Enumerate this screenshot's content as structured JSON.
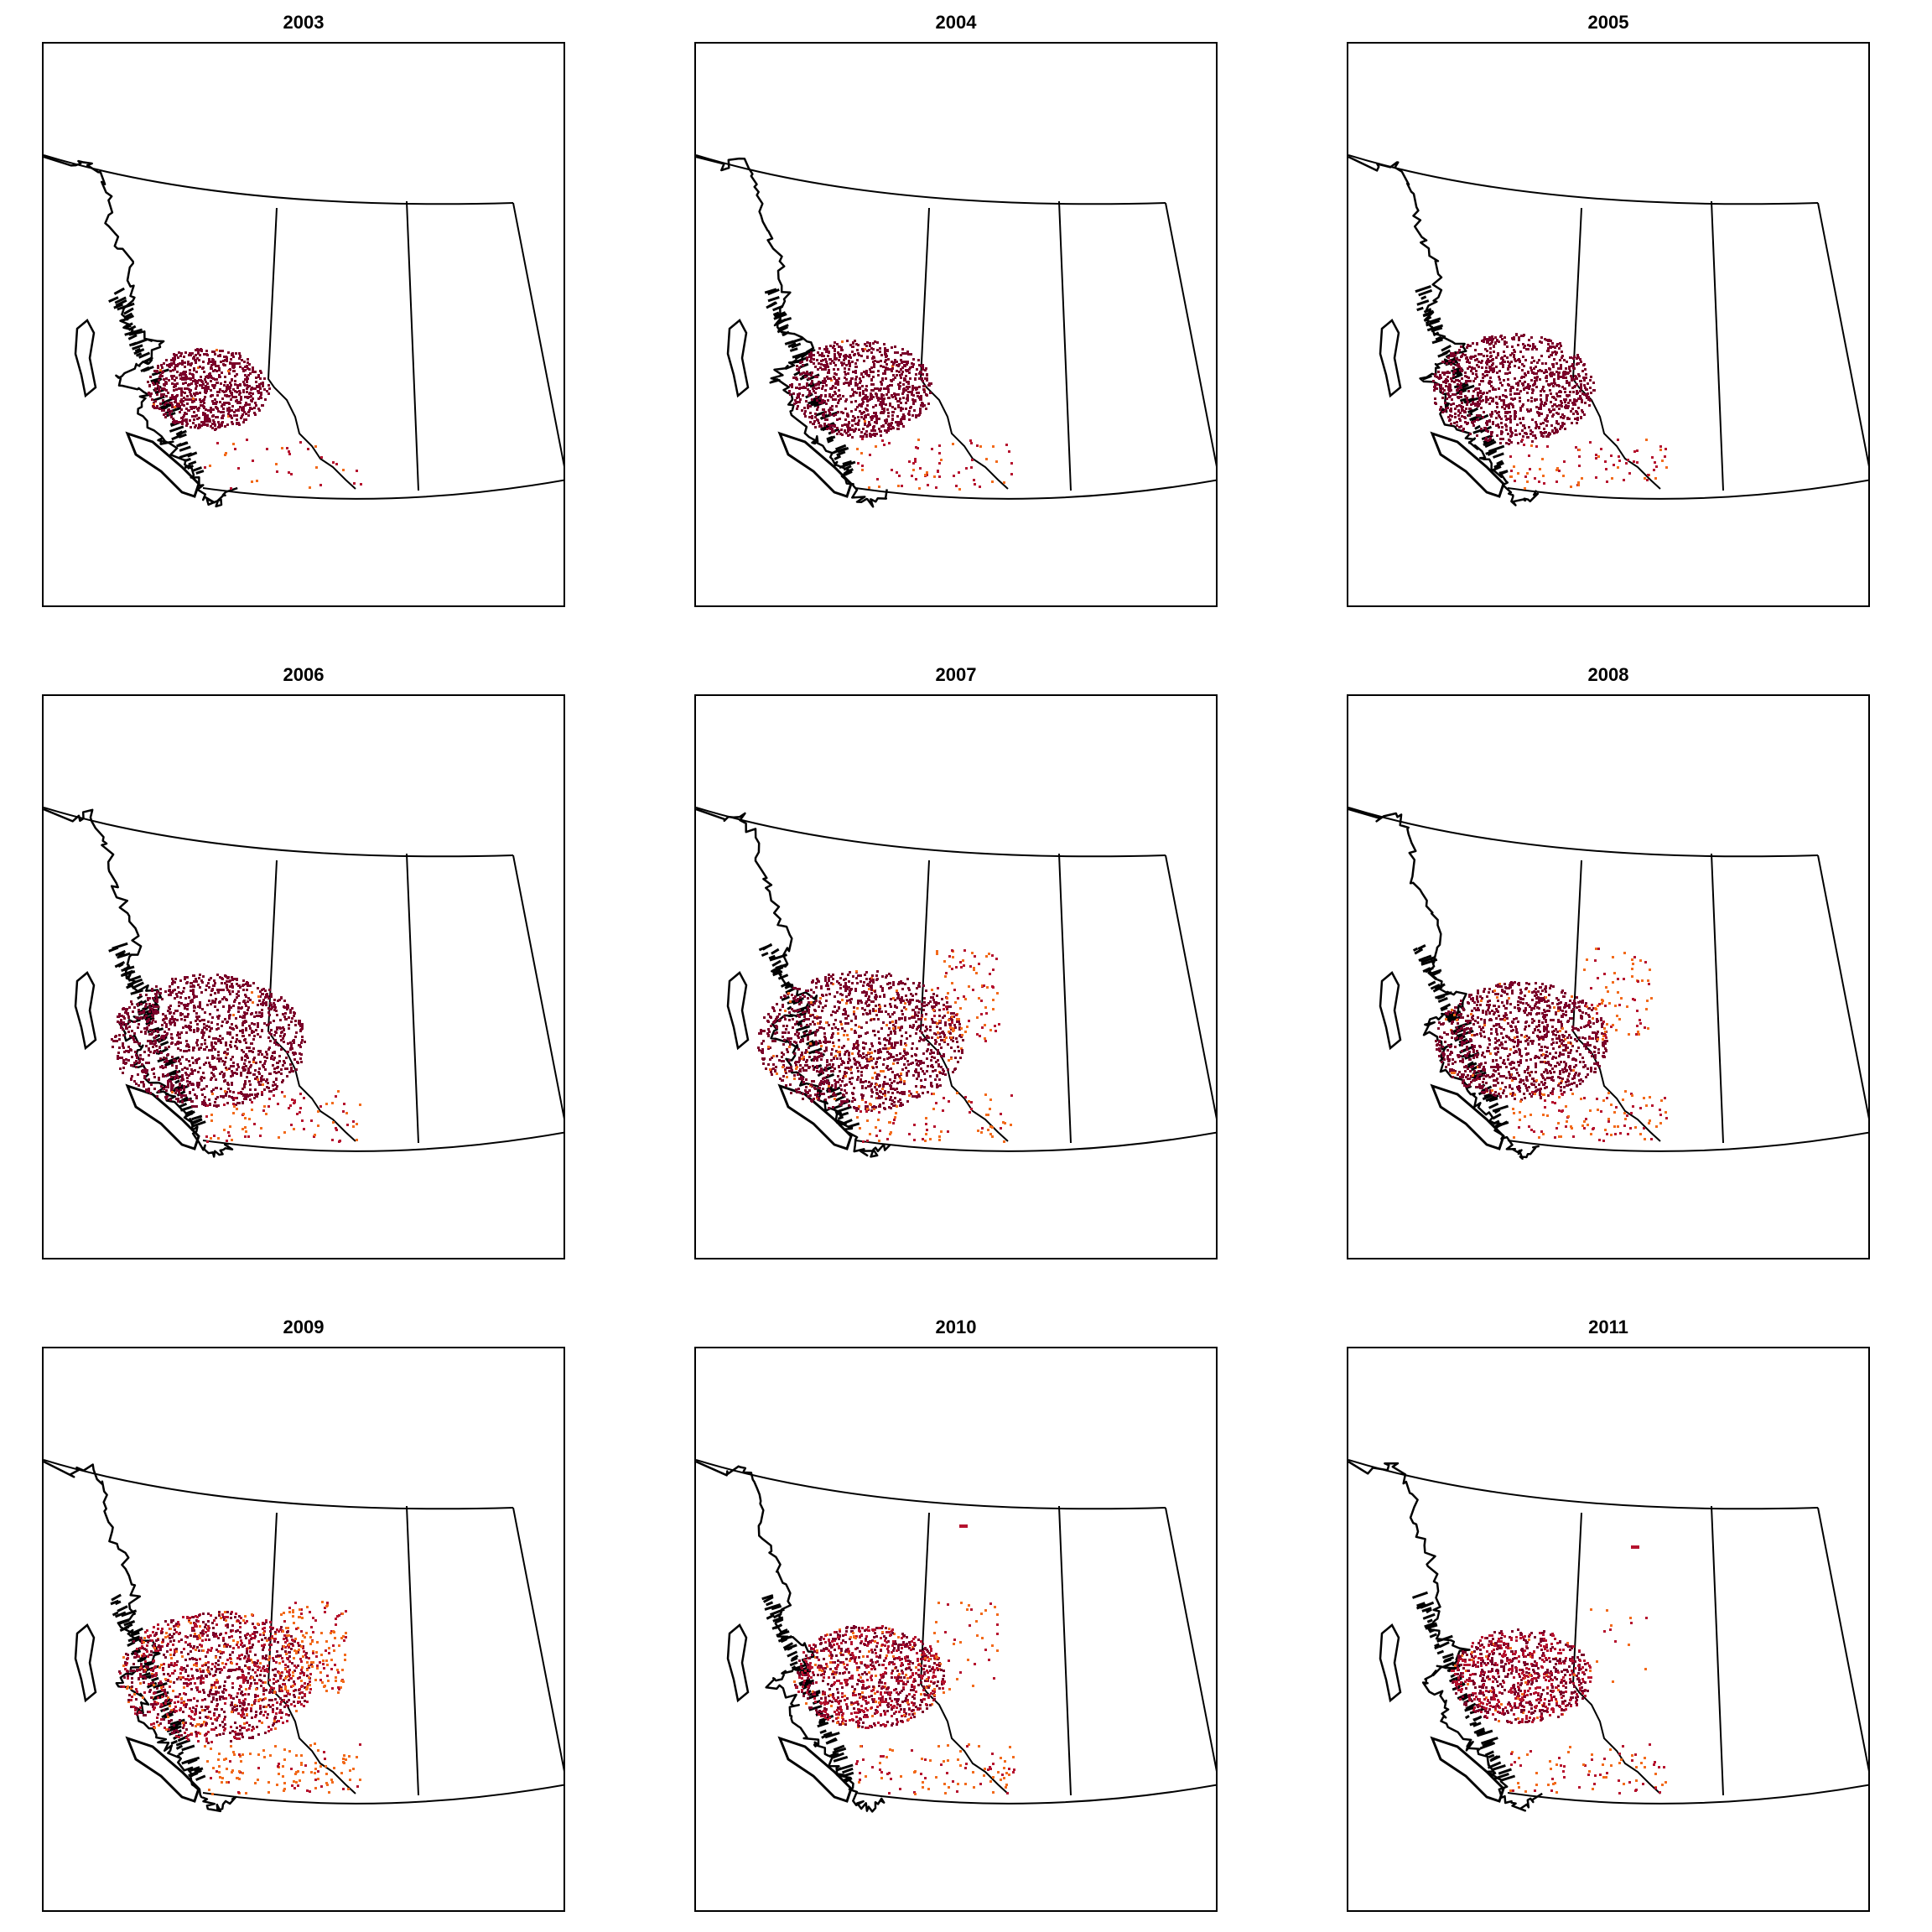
{
  "figure": {
    "panels": [
      {
        "year": "2003",
        "spread": 0.22,
        "scatter": 0.18,
        "orange": 0.05,
        "alberta": 0.0,
        "outliers": []
      },
      {
        "year": "2004",
        "spread": 0.32,
        "scatter": 0.35,
        "orange": 0.03,
        "alberta": 0.0,
        "outliers": []
      },
      {
        "year": "2005",
        "spread": 0.4,
        "scatter": 0.4,
        "orange": 0.0,
        "alberta": 0.0,
        "outliers": []
      },
      {
        "year": "2006",
        "spread": 0.55,
        "scatter": 0.45,
        "orange": 0.05,
        "alberta": 0.0,
        "outliers": []
      },
      {
        "year": "2007",
        "spread": 0.6,
        "scatter": 0.4,
        "orange": 0.25,
        "alberta": 0.35,
        "outliers": []
      },
      {
        "year": "2008",
        "spread": 0.45,
        "scatter": 0.55,
        "orange": 0.2,
        "alberta": 0.3,
        "outliers": []
      },
      {
        "year": "2009",
        "spread": 0.55,
        "scatter": 0.6,
        "orange": 0.4,
        "alberta": 0.55,
        "outliers": []
      },
      {
        "year": "2010",
        "spread": 0.35,
        "scatter": 0.45,
        "orange": 0.3,
        "alberta": 0.15,
        "outliers": [
          [
            0.84,
            0.52
          ]
        ]
      },
      {
        "year": "2011",
        "spread": 0.3,
        "scatter": 0.4,
        "orange": 0.15,
        "alberta": 0.05,
        "outliers": [
          [
            0.9,
            0.58
          ]
        ]
      }
    ],
    "colors": {
      "dark": "#7a0029",
      "red": "#b5122e",
      "orange": "#f26a1b",
      "outline": "#000000",
      "coast": "#000000"
    }
  }
}
